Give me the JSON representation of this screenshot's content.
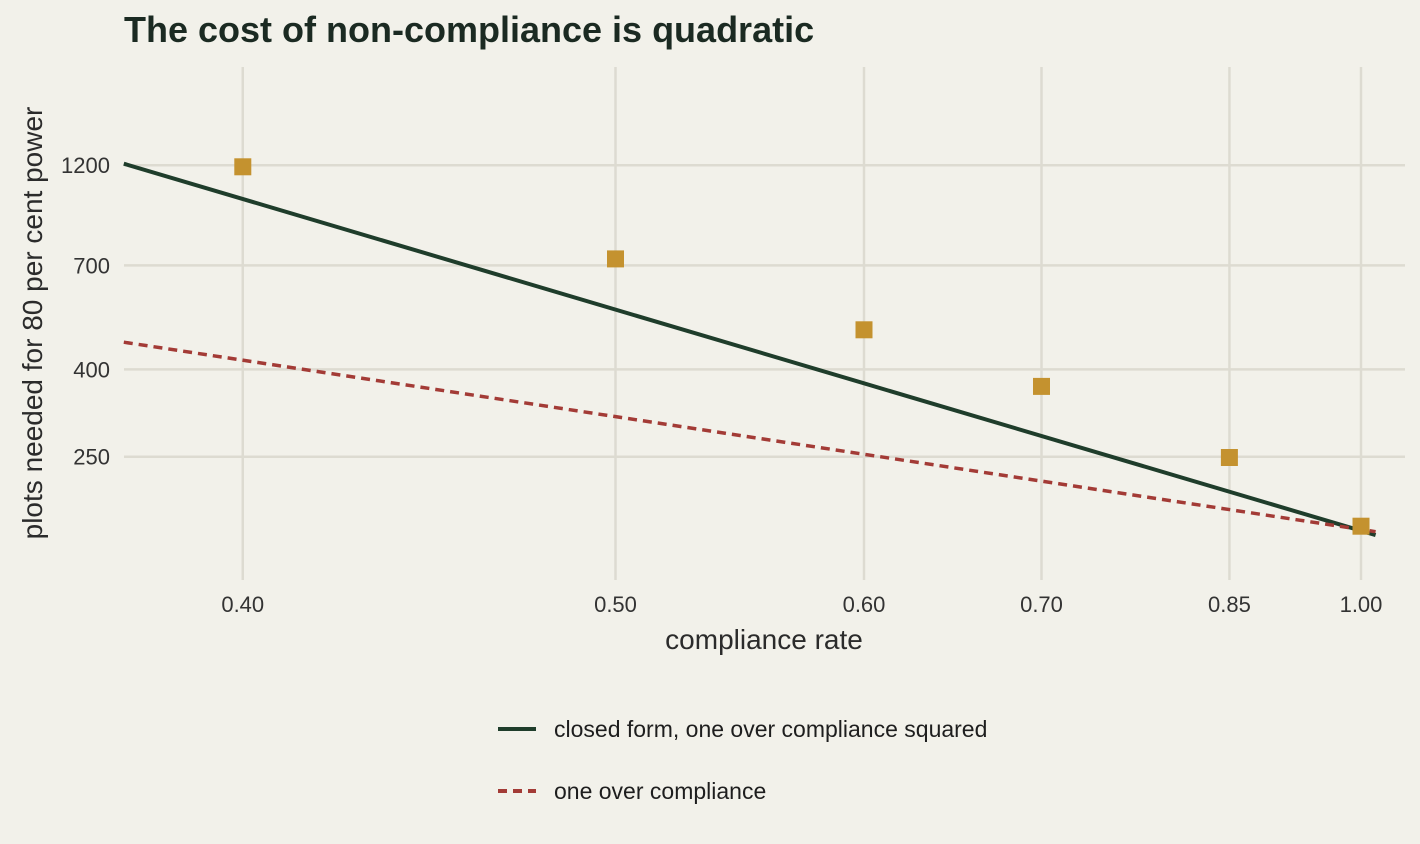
{
  "chart_data": {
    "type": "line",
    "title": "The cost of non-compliance is quadratic",
    "xlabel": "compliance rate",
    "ylabel": "plots needed for 80 per cent power",
    "x_scale": "reciprocal",
    "y_scale": "log",
    "x_ticks": [
      0.4,
      0.5,
      0.6,
      0.7,
      0.85,
      1.0
    ],
    "x_tick_labels": [
      "0.40",
      "0.50",
      "0.60",
      "0.70",
      "0.85",
      "1.00"
    ],
    "y_ticks": [
      250,
      400,
      700,
      1200
    ],
    "y_tick_labels": [
      "250",
      "400",
      "700",
      "1200"
    ],
    "xlim": [
      0.376,
      1.02
    ],
    "grid": true,
    "legend_position": "bottom",
    "series": [
      {
        "name": "closed form, one over compliance squared",
        "kind": "line",
        "style": "solid",
        "color": "#1f3d2b",
        "x": [
          0.376,
          1.02
        ],
        "y": [
          1210,
          164
        ]
      },
      {
        "name": "one over compliance",
        "kind": "line",
        "style": "dashed",
        "color": "#a33b36",
        "x": [
          0.376,
          1.02
        ],
        "y": [
          463,
          167
        ]
      },
      {
        "kind": "points",
        "marker": "square",
        "color": "#c4922f",
        "x": [
          0.4,
          0.5,
          0.6,
          0.7,
          0.85,
          1.0
        ],
        "y": [
          1190,
          725,
          495,
          365,
          249,
          172
        ]
      }
    ]
  }
}
